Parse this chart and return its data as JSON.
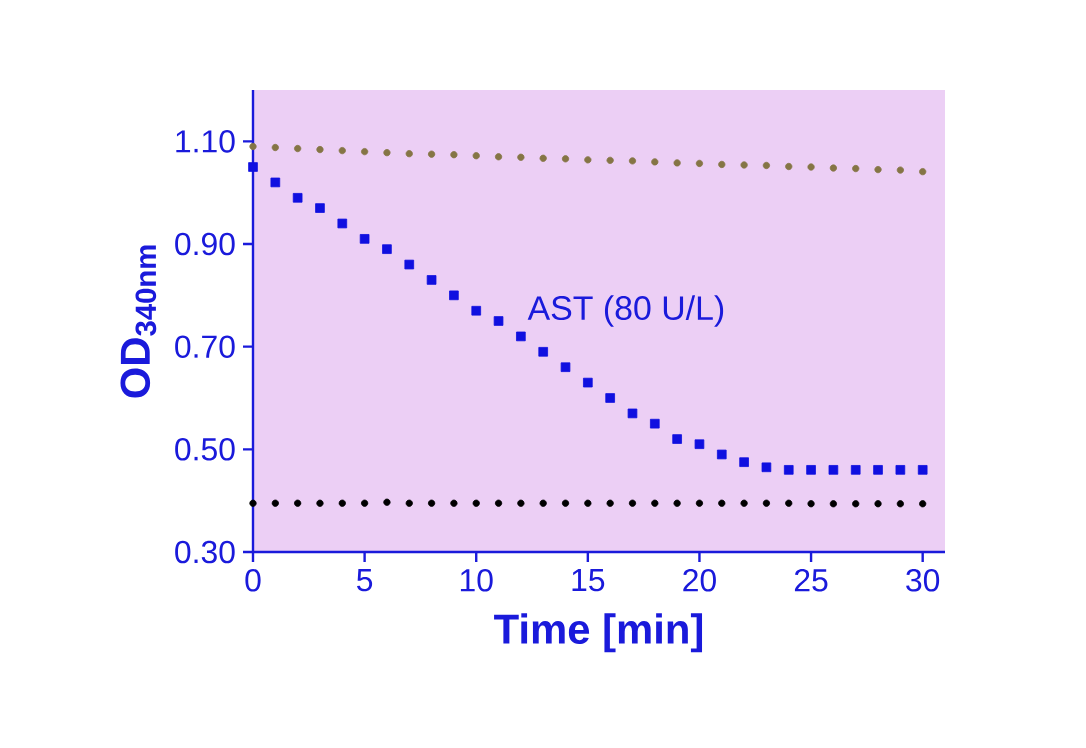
{
  "chart_data": {
    "type": "scatter",
    "xlabel": "Time  [min]",
    "ylabel": "OD$_{340nm}$",
    "x": [
      0,
      1,
      2,
      3,
      4,
      5,
      6,
      7,
      8,
      9,
      10,
      11,
      12,
      13,
      14,
      15,
      16,
      17,
      18,
      19,
      20,
      21,
      22,
      23,
      24,
      25,
      26,
      27,
      28,
      29,
      30
    ],
    "series": [
      {
        "color": "#857545",
        "marker": "circle",
        "values": [
          1.09,
          1.088,
          1.086,
          1.084,
          1.082,
          1.08,
          1.078,
          1.076,
          1.075,
          1.074,
          1.072,
          1.07,
          1.069,
          1.067,
          1.066,
          1.064,
          1.063,
          1.062,
          1.06,
          1.058,
          1.057,
          1.055,
          1.054,
          1.053,
          1.051,
          1.05,
          1.048,
          1.047,
          1.045,
          1.044,
          1.041
        ]
      },
      {
        "name": "AST (80 U/L)",
        "color": "#1010e0",
        "marker": "square",
        "values": [
          1.05,
          1.02,
          0.99,
          0.97,
          0.94,
          0.91,
          0.89,
          0.86,
          0.83,
          0.8,
          0.77,
          0.75,
          0.72,
          0.69,
          0.66,
          0.63,
          0.6,
          0.57,
          0.55,
          0.52,
          0.51,
          0.49,
          0.475,
          0.465,
          0.46,
          0.46,
          0.46,
          0.46,
          0.46,
          0.46,
          0.46
        ]
      },
      {
        "color": "#000000",
        "marker": "circle",
        "values": [
          0.395,
          0.395,
          0.395,
          0.395,
          0.395,
          0.395,
          0.397,
          0.395,
          0.395,
          0.395,
          0.395,
          0.395,
          0.395,
          0.395,
          0.395,
          0.395,
          0.395,
          0.395,
          0.395,
          0.395,
          0.395,
          0.395,
          0.395,
          0.395,
          0.395,
          0.394,
          0.394,
          0.394,
          0.394,
          0.394,
          0.394
        ]
      }
    ],
    "xlim": [
      0,
      31
    ],
    "ylim": [
      0.3,
      1.2
    ],
    "xticks": [
      0,
      5,
      10,
      15,
      20,
      25,
      30
    ],
    "yticks": [
      {
        "value": 0.3,
        "label": "0.30"
      },
      {
        "value": 0.5,
        "label": "0.50"
      },
      {
        "value": 0.7,
        "label": "0.70"
      },
      {
        "value": 0.9,
        "label": "0.90"
      },
      {
        "value": 1.1,
        "label": "1.10"
      }
    ]
  }
}
